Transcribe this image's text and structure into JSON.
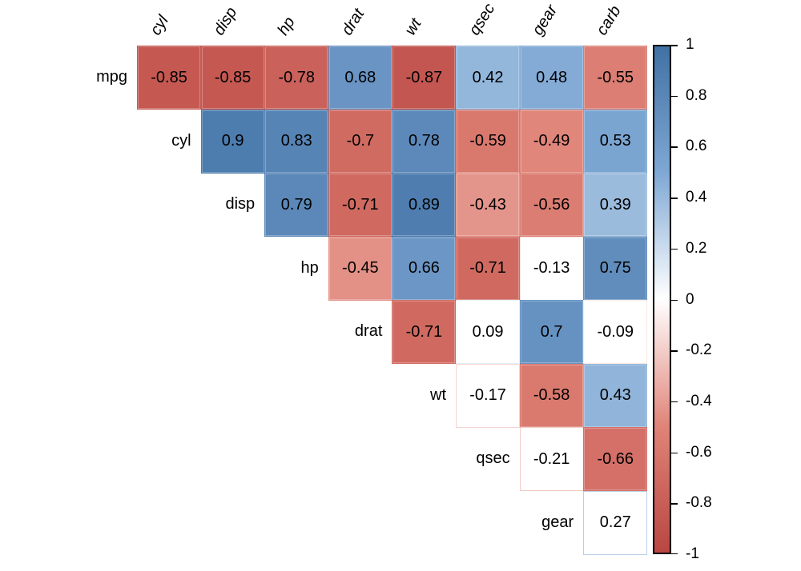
{
  "chart_data": {
    "type": "heatmap",
    "title": "",
    "description": "Lower-blank upper-triangular correlation matrix heatmap (mtcars variables) with coefficient labels and vertical colorbar",
    "columns": [
      "cyl",
      "disp",
      "hp",
      "drat",
      "wt",
      "qsec",
      "gear",
      "carb"
    ],
    "rows": [
      "mpg",
      "cyl",
      "disp",
      "hp",
      "drat",
      "wt",
      "qsec",
      "gear"
    ],
    "matrix": [
      [
        -0.85,
        -0.85,
        -0.78,
        0.68,
        -0.87,
        0.42,
        0.48,
        -0.55
      ],
      [
        null,
        0.9,
        0.83,
        -0.7,
        0.78,
        -0.59,
        -0.49,
        0.53
      ],
      [
        null,
        null,
        0.79,
        -0.71,
        0.89,
        -0.43,
        -0.56,
        0.39
      ],
      [
        null,
        null,
        null,
        -0.45,
        0.66,
        -0.71,
        -0.13,
        0.75
      ],
      [
        null,
        null,
        null,
        null,
        -0.71,
        0.09,
        0.7,
        -0.09
      ],
      [
        null,
        null,
        null,
        null,
        null,
        -0.17,
        -0.58,
        0.43
      ],
      [
        null,
        null,
        null,
        null,
        null,
        null,
        -0.21,
        -0.66
      ],
      [
        null,
        null,
        null,
        null,
        null,
        null,
        null,
        0.27
      ]
    ],
    "blank_fill_below_abs": 0.35,
    "colorbar": {
      "min": -1,
      "max": 1,
      "tick_labels": [
        "1",
        "0.8",
        "0.6",
        "0.4",
        "0.2",
        "0",
        "-0.2",
        "-0.4",
        "-0.6",
        "-0.8",
        "-1"
      ],
      "position": "right"
    },
    "colors": {
      "positive_end": "#4171A4",
      "positive_mid": "#7FA8D4",
      "center": "#FFFFFF",
      "negative_mid": "#E08478",
      "negative_end": "#B94642",
      "value_text": "#000000",
      "colorbar_border": "#000000",
      "background": "#FFFFFF"
    },
    "legend_position": "right",
    "grid": false
  }
}
